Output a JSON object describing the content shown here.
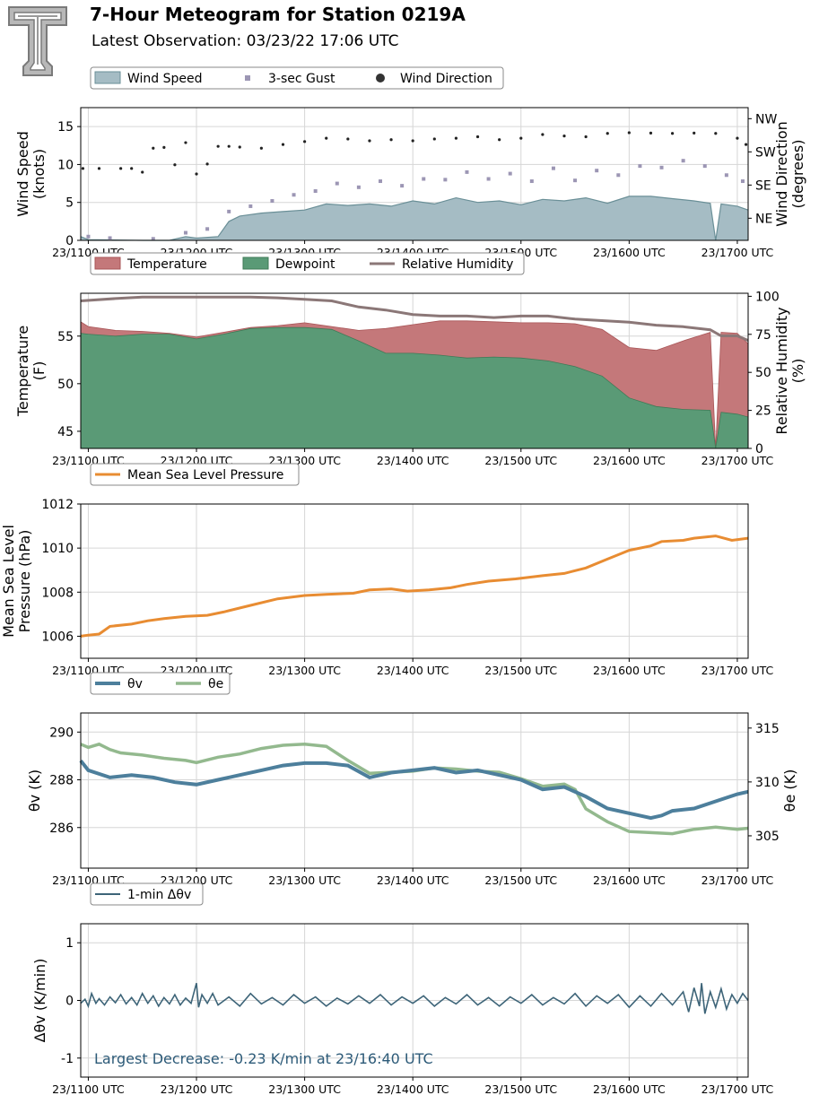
{
  "header": {
    "title": "7-Hour Meteogram for Station 0219A",
    "subtitle": "Latest Observation: 03/23/22 17:06 UTC"
  },
  "colors": {
    "wind_fill": "#a5bcc4",
    "wind_line": "#6a8f97",
    "gust": "#9c96b4",
    "direction": "#222222",
    "temperature": "#c4787a",
    "dewpoint": "#5a9a76",
    "rh": "#8b7777",
    "pressure": "#e88c32",
    "theta_v": "#4d7f9c",
    "theta_e": "#93b98e",
    "dtheta": "#3d6478",
    "annotation": "#2c5a78"
  },
  "chart_data": [
    {
      "type": "area",
      "name": "wind",
      "legend": [
        "Wind Speed",
        "3-sec Gust",
        "Wind Direction"
      ],
      "x_ticks": [
        "23/1100 UTC",
        "23/1200 UTC",
        "23/1300 UTC",
        "23/1400 UTC",
        "23/1500 UTC",
        "23/1600 UTC",
        "23/1700 UTC"
      ],
      "x_range_hours": [
        10.93,
        17.1
      ],
      "ylabel": [
        "Wind Speed",
        "(knots)"
      ],
      "ylim": [
        0,
        17.5
      ],
      "y_ticks": [
        0,
        5,
        10,
        15
      ],
      "y2label": [
        "Wind Direction",
        "(degrees)"
      ],
      "y2_ticks": [
        "NE",
        "SE",
        "SW",
        "NW"
      ],
      "y2_tick_values": [
        45,
        135,
        225,
        315
      ],
      "y2lim": [
        -15,
        345
      ],
      "speed": {
        "x": [
          10.93,
          11.0,
          11.5,
          11.75,
          11.9,
          12.0,
          12.2,
          12.3,
          12.4,
          12.6,
          12.8,
          13.0,
          13.2,
          13.4,
          13.6,
          13.8,
          14.0,
          14.2,
          14.4,
          14.6,
          14.8,
          15.0,
          15.2,
          15.4,
          15.6,
          15.8,
          16.0,
          16.2,
          16.4,
          16.6,
          16.75,
          16.8,
          16.85,
          17.0,
          17.1
        ],
        "y": [
          0.5,
          0.1,
          0,
          0,
          0.5,
          0.3,
          0.5,
          2.5,
          3.2,
          3.6,
          3.8,
          4.0,
          4.8,
          4.6,
          4.8,
          4.5,
          5.2,
          4.8,
          5.6,
          5.0,
          5.2,
          4.7,
          5.4,
          5.2,
          5.6,
          4.9,
          5.8,
          5.8,
          5.5,
          5.2,
          4.9,
          0,
          4.8,
          4.5,
          4.0
        ]
      },
      "gust": {
        "x": [
          11.0,
          11.2,
          11.6,
          11.9,
          12.1,
          12.3,
          12.5,
          12.7,
          12.9,
          13.1,
          13.3,
          13.5,
          13.7,
          13.9,
          14.1,
          14.3,
          14.5,
          14.7,
          14.9,
          15.1,
          15.3,
          15.5,
          15.7,
          15.9,
          16.1,
          16.3,
          16.5,
          16.7,
          16.9,
          17.05
        ],
        "y": [
          0.5,
          0.3,
          0.2,
          1.0,
          1.5,
          3.8,
          4.5,
          5.2,
          6.0,
          6.5,
          7.5,
          7.0,
          7.8,
          7.2,
          8.1,
          8.0,
          9.0,
          8.1,
          8.8,
          7.8,
          9.5,
          7.9,
          9.2,
          8.6,
          9.8,
          9.6,
          10.5,
          9.8,
          8.6,
          7.8
        ]
      },
      "direction": {
        "x": [
          10.95,
          11.1,
          11.3,
          11.4,
          11.5,
          11.6,
          11.7,
          11.8,
          11.9,
          12.0,
          12.1,
          12.2,
          12.3,
          12.4,
          12.6,
          12.8,
          13.0,
          13.2,
          13.4,
          13.6,
          13.8,
          14.0,
          14.2,
          14.4,
          14.6,
          14.8,
          15.0,
          15.2,
          15.4,
          15.6,
          15.8,
          16.0,
          16.2,
          16.4,
          16.6,
          16.8,
          17.0,
          17.08
        ],
        "y": [
          180,
          180,
          180,
          180,
          170,
          235,
          237,
          190,
          250,
          165,
          192,
          240,
          240,
          238,
          235,
          245,
          253,
          262,
          260,
          255,
          258,
          255,
          260,
          262,
          266,
          258,
          262,
          272,
          268,
          266,
          275,
          277,
          276,
          275,
          276,
          275,
          262,
          245
        ]
      }
    },
    {
      "type": "area",
      "name": "temperature",
      "legend": [
        "Temperature",
        "Dewpoint",
        "Relative Humidity"
      ],
      "x_ticks": [
        "23/1100 UTC",
        "23/1200 UTC",
        "23/1300 UTC",
        "23/1400 UTC",
        "23/1500 UTC",
        "23/1600 UTC",
        "23/1700 UTC"
      ],
      "x_range_hours": [
        10.93,
        17.1
      ],
      "ylabel": [
        "Temperature",
        "(F)"
      ],
      "ylim": [
        43.2,
        59.5
      ],
      "y_ticks": [
        45,
        50,
        55
      ],
      "y2label": [
        "Relative Humidity",
        "(%)"
      ],
      "y2lim": [
        0,
        102
      ],
      "y2_ticks": [
        0,
        25,
        50,
        75,
        100
      ],
      "temp": {
        "x": [
          10.93,
          11.0,
          11.25,
          11.5,
          11.75,
          12.0,
          12.25,
          12.5,
          12.75,
          13.0,
          13.25,
          13.5,
          13.75,
          14.0,
          14.25,
          14.5,
          14.75,
          15.0,
          15.25,
          15.5,
          15.75,
          16.0,
          16.25,
          16.5,
          16.75,
          16.8,
          16.85,
          17.0,
          17.1
        ],
        "y": [
          56.5,
          56.0,
          55.6,
          55.5,
          55.3,
          54.9,
          55.4,
          55.9,
          56.1,
          56.4,
          56.0,
          55.6,
          55.8,
          56.2,
          56.6,
          56.6,
          56.5,
          56.4,
          56.4,
          56.3,
          55.7,
          53.8,
          53.5,
          54.5,
          55.4,
          43.2,
          55.4,
          55.3,
          54.2
        ]
      },
      "dewp": {
        "x": [
          10.93,
          11.0,
          11.25,
          11.5,
          11.75,
          12.0,
          12.25,
          12.5,
          12.75,
          13.0,
          13.25,
          13.5,
          13.75,
          14.0,
          14.25,
          14.5,
          14.75,
          15.0,
          15.25,
          15.5,
          15.75,
          16.0,
          16.25,
          16.5,
          16.75,
          16.8,
          16.85,
          17.0,
          17.1
        ],
        "y": [
          55.3,
          55.2,
          55.0,
          55.2,
          55.2,
          54.7,
          55.2,
          55.8,
          55.9,
          55.9,
          55.7,
          54.5,
          53.2,
          53.2,
          53.0,
          52.7,
          52.8,
          52.7,
          52.4,
          51.8,
          50.8,
          48.5,
          47.6,
          47.3,
          47.2,
          43.2,
          47.0,
          46.8,
          46.5
        ]
      },
      "rh": {
        "x": [
          10.93,
          11.25,
          11.5,
          12.0,
          12.5,
          12.75,
          13.0,
          13.25,
          13.5,
          13.75,
          14.0,
          14.25,
          14.5,
          14.75,
          15.0,
          15.25,
          15.5,
          15.75,
          16.0,
          16.25,
          16.5,
          16.75,
          16.85,
          17.0,
          17.1
        ],
        "y": [
          97,
          98.5,
          99.5,
          99.5,
          99.5,
          99,
          98,
          97,
          93,
          91,
          88,
          87,
          87,
          86,
          87,
          87,
          85,
          84,
          83,
          81,
          80,
          78,
          74,
          74,
          71
        ]
      }
    },
    {
      "type": "line",
      "name": "pressure",
      "legend": [
        "Mean Sea Level Pressure"
      ],
      "x_ticks": [
        "23/1100 UTC",
        "23/1200 UTC",
        "23/1300 UTC",
        "23/1400 UTC",
        "23/1500 UTC",
        "23/1600 UTC",
        "23/1700 UTC"
      ],
      "x_range_hours": [
        10.93,
        17.1
      ],
      "ylabel": [
        "Mean Sea Level",
        "Pressure (hPa)"
      ],
      "ylim": [
        1005,
        1012
      ],
      "y_ticks": [
        1006,
        1008,
        1010,
        1012
      ],
      "x": [
        10.93,
        11.0,
        11.1,
        11.2,
        11.4,
        11.55,
        11.7,
        11.9,
        12.1,
        12.25,
        12.5,
        12.75,
        13.0,
        13.2,
        13.45,
        13.6,
        13.8,
        13.95,
        14.15,
        14.35,
        14.5,
        14.7,
        14.95,
        15.2,
        15.4,
        15.6,
        15.8,
        15.9,
        16.0,
        16.2,
        16.3,
        16.5,
        16.6,
        16.8,
        16.95,
        17.1
      ],
      "y": [
        1006.0,
        1006.05,
        1006.1,
        1006.45,
        1006.55,
        1006.7,
        1006.8,
        1006.9,
        1006.95,
        1007.1,
        1007.4,
        1007.7,
        1007.85,
        1007.9,
        1007.95,
        1008.1,
        1008.15,
        1008.05,
        1008.1,
        1008.2,
        1008.35,
        1008.5,
        1008.6,
        1008.75,
        1008.85,
        1009.1,
        1009.5,
        1009.7,
        1009.9,
        1010.1,
        1010.3,
        1010.35,
        1010.45,
        1010.55,
        1010.35,
        1010.45
      ]
    },
    {
      "type": "line",
      "name": "theta",
      "legend": [
        "θv",
        "θe"
      ],
      "x_ticks": [
        "23/1100 UTC",
        "23/1200 UTC",
        "23/1300 UTC",
        "23/1400 UTC",
        "23/1500 UTC",
        "23/1600 UTC",
        "23/1700 UTC"
      ],
      "x_range_hours": [
        10.93,
        17.1
      ],
      "ylabel": "θv (K)",
      "ylim": [
        284.3,
        290.8
      ],
      "y_ticks": [
        286,
        288,
        290
      ],
      "y2label": "θe (K)",
      "y2lim": [
        302.0,
        316.4
      ],
      "y2_ticks": [
        305,
        310,
        315
      ],
      "theta_v": {
        "x": [
          10.93,
          11.0,
          11.2,
          11.4,
          11.6,
          11.8,
          12.0,
          12.2,
          12.4,
          12.6,
          12.8,
          13.0,
          13.2,
          13.4,
          13.6,
          13.8,
          14.0,
          14.2,
          14.4,
          14.6,
          14.8,
          15.0,
          15.2,
          15.4,
          15.6,
          15.8,
          16.0,
          16.1,
          16.2,
          16.3,
          16.4,
          16.6,
          16.8,
          17.0,
          17.1
        ],
        "y": [
          288.8,
          288.4,
          288.1,
          288.2,
          288.1,
          287.9,
          287.8,
          288.0,
          288.2,
          288.4,
          288.6,
          288.7,
          288.7,
          288.6,
          288.1,
          288.3,
          288.4,
          288.5,
          288.3,
          288.4,
          288.2,
          288.0,
          287.6,
          287.7,
          287.3,
          286.8,
          286.6,
          286.5,
          286.4,
          286.5,
          286.7,
          286.8,
          287.1,
          287.4,
          287.5
        ]
      },
      "theta_e": {
        "x": [
          10.93,
          11.0,
          11.1,
          11.2,
          11.3,
          11.5,
          11.7,
          11.9,
          12.0,
          12.2,
          12.4,
          12.6,
          12.8,
          13.0,
          13.2,
          13.4,
          13.6,
          13.8,
          14.0,
          14.2,
          14.4,
          14.6,
          14.8,
          15.0,
          15.2,
          15.4,
          15.5,
          15.6,
          15.8,
          16.0,
          16.2,
          16.4,
          16.6,
          16.8,
          17.0,
          17.1
        ],
        "y": [
          313.5,
          313.2,
          313.5,
          313.0,
          312.7,
          312.5,
          312.2,
          312.0,
          311.8,
          312.3,
          312.6,
          313.1,
          313.4,
          313.5,
          313.3,
          312.0,
          310.8,
          310.9,
          311.0,
          311.3,
          311.2,
          311.0,
          310.9,
          310.3,
          309.6,
          309.8,
          309.3,
          307.5,
          306.3,
          305.4,
          305.3,
          305.2,
          305.6,
          305.8,
          305.6,
          305.7
        ]
      }
    },
    {
      "type": "line",
      "name": "dtheta",
      "legend": [
        "1-min Δθv"
      ],
      "x_ticks": [
        "23/1100 UTC",
        "23/1200 UTC",
        "23/1300 UTC",
        "23/1400 UTC",
        "23/1500 UTC",
        "23/1600 UTC",
        "23/1700 UTC"
      ],
      "x_range_hours": [
        10.93,
        17.1
      ],
      "ylabel": "Δθv (K/min)",
      "ylim": [
        -1.33,
        1.33
      ],
      "y_ticks": [
        -1,
        0,
        1
      ],
      "annotation": "Largest Decrease: -0.23 K/min at 23/16:40 UTC",
      "x": [
        10.93,
        10.97,
        11.0,
        11.03,
        11.07,
        11.1,
        11.15,
        11.2,
        11.25,
        11.3,
        11.35,
        11.4,
        11.45,
        11.5,
        11.55,
        11.6,
        11.65,
        11.7,
        11.75,
        11.8,
        11.85,
        11.9,
        11.95,
        12.0,
        12.02,
        12.05,
        12.1,
        12.15,
        12.2,
        12.3,
        12.4,
        12.5,
        12.6,
        12.7,
        12.8,
        12.9,
        13.0,
        13.1,
        13.2,
        13.3,
        13.4,
        13.5,
        13.6,
        13.7,
        13.8,
        13.9,
        14.0,
        14.1,
        14.2,
        14.3,
        14.4,
        14.5,
        14.6,
        14.7,
        14.8,
        14.9,
        15.0,
        15.1,
        15.2,
        15.3,
        15.4,
        15.5,
        15.6,
        15.7,
        15.8,
        15.9,
        16.0,
        16.1,
        16.2,
        16.3,
        16.4,
        16.5,
        16.55,
        16.6,
        16.65,
        16.67,
        16.7,
        16.75,
        16.8,
        16.85,
        16.9,
        16.95,
        17.0,
        17.05,
        17.1
      ],
      "y": [
        -0.05,
        0.02,
        -0.1,
        0.12,
        -0.05,
        0.03,
        -0.08,
        0.06,
        -0.04,
        0.1,
        -0.06,
        0.05,
        -0.08,
        0.12,
        -0.05,
        0.08,
        -0.1,
        0.05,
        -0.06,
        0.1,
        -0.08,
        0.04,
        -0.05,
        0.3,
        -0.12,
        0.1,
        -0.05,
        0.12,
        -0.08,
        0.06,
        -0.1,
        0.12,
        -0.06,
        0.05,
        -0.08,
        0.1,
        -0.05,
        0.06,
        -0.1,
        0.04,
        -0.06,
        0.08,
        -0.05,
        0.1,
        -0.08,
        0.06,
        -0.05,
        0.08,
        -0.1,
        0.05,
        -0.06,
        0.1,
        -0.08,
        0.05,
        -0.1,
        0.06,
        -0.05,
        0.1,
        -0.08,
        0.05,
        -0.06,
        0.12,
        -0.1,
        0.08,
        -0.05,
        0.1,
        -0.12,
        0.08,
        -0.1,
        0.12,
        -0.08,
        0.15,
        -0.2,
        0.22,
        -0.1,
        0.3,
        -0.23,
        0.15,
        -0.12,
        0.2,
        -0.15,
        0.1,
        -0.05,
        0.12,
        0.0
      ]
    }
  ]
}
